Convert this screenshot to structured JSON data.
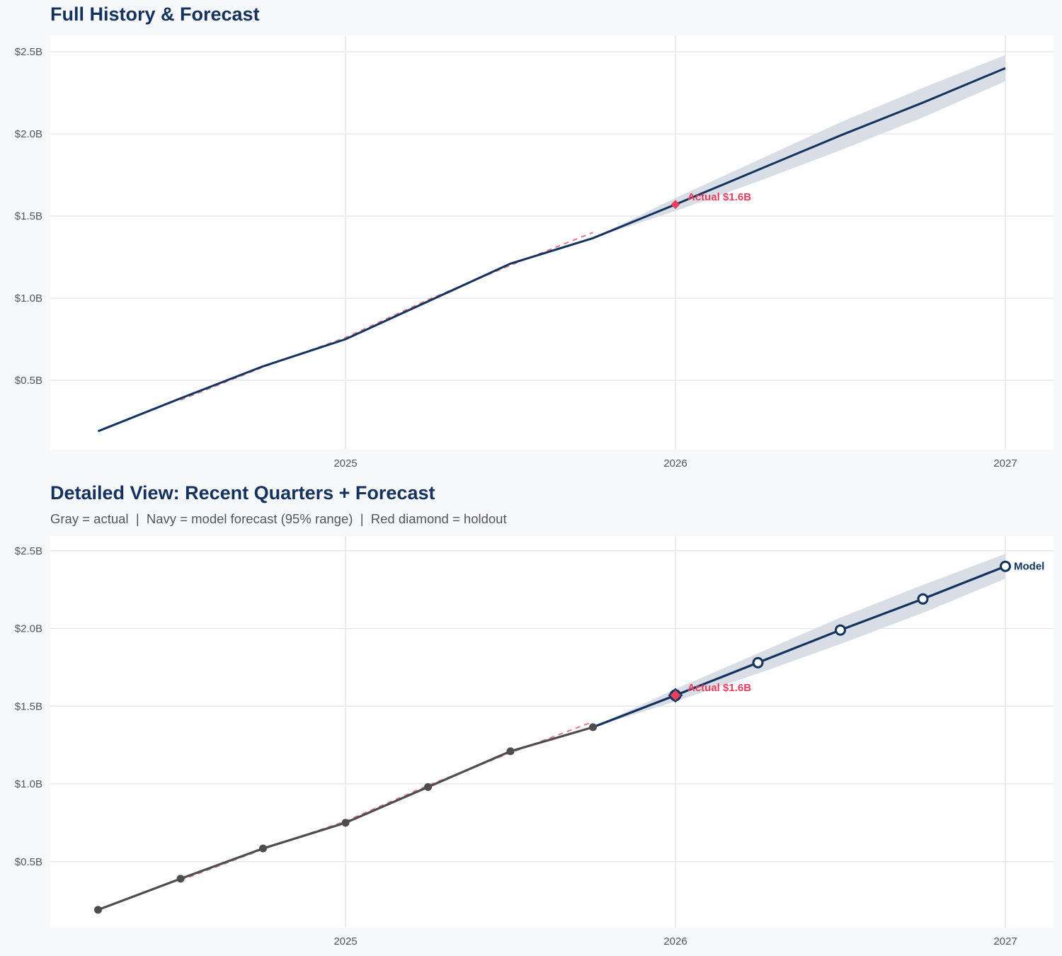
{
  "colors": {
    "navy": "#13325e",
    "band": "#d9dee6",
    "gray_line": "#4d4d4d",
    "red": "#e4405f",
    "dashed_red": "#e07b8c",
    "grid": "#e3e3e3",
    "background": "#f7f8fa",
    "panel": "#ffffff"
  },
  "top_panel": {
    "title": "Full History & Forecast",
    "annotation": "Actual $1.6B"
  },
  "bottom_panel": {
    "title": "Detailed View: Recent Quarters + Forecast",
    "subtitle": "Gray = actual  |  Navy = model forecast (95% range)  |  Red diamond = holdout",
    "annotation": "Actual $1.6B",
    "model_label": "Model"
  },
  "chart_data": [
    {
      "type": "line",
      "title": "Full History & Forecast",
      "xlabel": "",
      "ylabel": "",
      "x_ticks": [
        "2025",
        "2026",
        "2027"
      ],
      "y_ticks": [
        "$0.5B",
        "$1.0B",
        "$1.5B",
        "$2.0B",
        "$2.5B"
      ],
      "ylim": [
        0.05,
        2.6
      ],
      "xlim": [
        2024.11,
        2027.15
      ],
      "grid": true,
      "series": [
        {
          "name": "Actual / model line",
          "style": "solid navy",
          "x": [
            2024.25,
            2024.5,
            2024.75,
            2025.0,
            2025.25,
            2025.5,
            2025.75,
            2026.0,
            2026.25,
            2026.5,
            2026.75,
            2027.0
          ],
          "values": [
            0.19,
            0.39,
            0.585,
            0.75,
            0.98,
            1.21,
            1.365,
            1.57,
            1.78,
            1.99,
            2.19,
            2.4
          ]
        },
        {
          "name": "Fitted (dashed)",
          "style": "dashed red",
          "x": [
            2024.5,
            2024.75,
            2025.0,
            2025.25,
            2025.5,
            2025.75
          ],
          "values": [
            0.38,
            0.58,
            0.76,
            0.99,
            1.2,
            1.4
          ]
        },
        {
          "name": "95% range",
          "style": "band",
          "x": [
            2025.75,
            2026.0,
            2026.25,
            2026.5,
            2026.75,
            2027.0
          ],
          "lower": [
            1.365,
            1.53,
            1.71,
            1.9,
            2.1,
            2.32
          ],
          "upper": [
            1.365,
            1.61,
            1.84,
            2.07,
            2.28,
            2.48
          ]
        },
        {
          "name": "Holdout",
          "style": "red diamond",
          "x": [
            2026.0
          ],
          "values": [
            1.57
          ]
        }
      ],
      "annotations": [
        {
          "text": "Actual $1.6B",
          "x": 2026.0,
          "y": 1.57
        }
      ]
    },
    {
      "type": "line",
      "title": "Detailed View: Recent Quarters + Forecast",
      "subtitle": "Gray = actual  |  Navy = model forecast (95% range)  |  Red diamond = holdout",
      "xlabel": "",
      "ylabel": "",
      "x_ticks": [
        "2025",
        "2026",
        "2027"
      ],
      "y_ticks": [
        "$0.5B",
        "$1.0B",
        "$1.5B",
        "$2.0B",
        "$2.5B"
      ],
      "ylim": [
        0.07,
        2.6
      ],
      "xlim": [
        2024.11,
        2027.15
      ],
      "grid": true,
      "series": [
        {
          "name": "Actual",
          "style": "gray line with markers",
          "x": [
            2024.25,
            2024.5,
            2024.75,
            2025.0,
            2025.25,
            2025.5,
            2025.75
          ],
          "values": [
            0.19,
            0.39,
            0.585,
            0.75,
            0.98,
            1.21,
            1.365
          ]
        },
        {
          "name": "Fitted (dashed)",
          "style": "dashed red",
          "x": [
            2024.5,
            2024.75,
            2025.0,
            2025.25,
            2025.5,
            2025.75
          ],
          "values": [
            0.38,
            0.58,
            0.76,
            0.99,
            1.2,
            1.4
          ]
        },
        {
          "name": "Model forecast",
          "style": "navy line with open circles",
          "x": [
            2025.75,
            2026.0,
            2026.25,
            2026.5,
            2026.75,
            2027.0
          ],
          "values": [
            1.365,
            1.57,
            1.78,
            1.99,
            2.19,
            2.4
          ]
        },
        {
          "name": "95% range",
          "style": "band",
          "x": [
            2025.75,
            2026.0,
            2026.25,
            2026.5,
            2026.75,
            2027.0
          ],
          "lower": [
            1.365,
            1.53,
            1.71,
            1.9,
            2.1,
            2.32
          ],
          "upper": [
            1.365,
            1.61,
            1.84,
            2.07,
            2.28,
            2.48
          ]
        },
        {
          "name": "Holdout",
          "style": "red diamond",
          "x": [
            2026.0
          ],
          "values": [
            1.57
          ]
        }
      ],
      "annotations": [
        {
          "text": "Actual $1.6B",
          "x": 2026.0,
          "y": 1.57
        },
        {
          "text": "Model",
          "x": 2027.0,
          "y": 2.4
        }
      ]
    }
  ]
}
